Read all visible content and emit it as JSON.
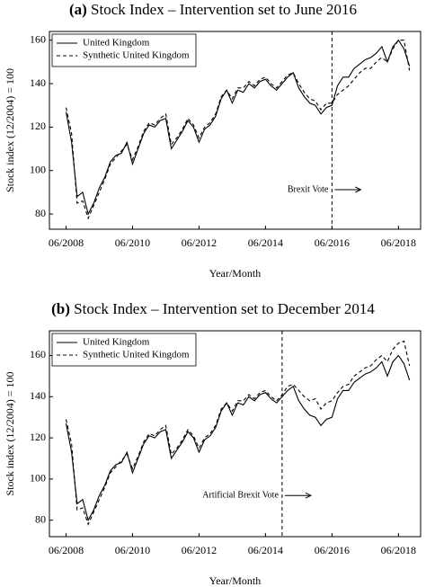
{
  "chart_data": [
    {
      "type": "line",
      "label": "(a)",
      "title": "Stock Index – Intervention set to June 2016",
      "xlabel": "Year/Month",
      "ylabel": "Stock index (12/2004) = 100",
      "annotation": "Brexit Vote",
      "intervention": "06/2016",
      "xlim": [
        "12/2007",
        "02/2019"
      ],
      "xticks": [
        "06/2008",
        "06/2010",
        "06/2012",
        "06/2014",
        "06/2016",
        "06/2018"
      ],
      "ylim": [
        73,
        164
      ],
      "yticks": [
        80,
        100,
        120,
        140,
        160
      ],
      "legend": "upper left",
      "x": [
        "06/2008",
        "08/2008",
        "10/2008",
        "12/2008",
        "02/2009",
        "04/2009",
        "06/2009",
        "08/2009",
        "10/2009",
        "12/2009",
        "02/2010",
        "04/2010",
        "06/2010",
        "08/2010",
        "10/2010",
        "12/2010",
        "02/2011",
        "04/2011",
        "06/2011",
        "08/2011",
        "10/2011",
        "12/2011",
        "02/2012",
        "04/2012",
        "06/2012",
        "08/2012",
        "10/2012",
        "12/2012",
        "02/2013",
        "04/2013",
        "06/2013",
        "08/2013",
        "10/2013",
        "12/2013",
        "02/2014",
        "04/2014",
        "06/2014",
        "08/2014",
        "10/2014",
        "12/2014",
        "02/2015",
        "04/2015",
        "06/2015",
        "08/2015",
        "10/2015",
        "12/2015",
        "02/2016",
        "04/2016",
        "06/2016",
        "08/2016",
        "10/2016",
        "12/2016",
        "02/2017",
        "04/2017",
        "06/2017",
        "08/2017",
        "10/2017",
        "12/2017",
        "02/2018",
        "04/2018",
        "06/2018",
        "08/2018",
        "10/2018"
      ],
      "series": [
        {
          "name": "United Kingdom",
          "color": "#000000",
          "linestyle": "solid",
          "values": [
            127,
            113,
            88,
            90,
            80,
            85,
            92,
            97,
            104,
            107,
            108,
            113,
            103,
            110,
            117,
            121,
            120,
            123,
            124,
            110,
            114,
            118,
            123,
            120,
            113,
            119,
            121,
            125,
            133,
            137,
            131,
            137,
            136,
            140,
            138,
            141,
            142,
            139,
            137,
            140,
            143,
            145,
            138,
            134,
            131,
            130,
            126,
            129,
            130,
            139,
            143,
            143,
            147,
            149,
            151,
            152,
            154,
            157,
            150,
            157,
            160,
            156,
            148
          ]
        },
        {
          "name": "Synthetic United Kingdom",
          "color": "#000000",
          "linestyle": "dashed",
          "values": [
            129,
            117,
            85,
            86,
            78,
            84,
            90,
            96,
            103,
            106,
            109,
            112,
            105,
            111,
            118,
            122,
            121,
            124,
            126,
            112,
            115,
            119,
            124,
            121,
            115,
            120,
            122,
            126,
            134,
            137,
            133,
            138,
            138,
            141,
            139,
            142,
            143,
            140,
            138,
            141,
            144,
            145,
            140,
            136,
            133,
            132,
            128,
            131,
            131,
            135,
            137,
            139,
            142,
            145,
            147,
            147,
            150,
            152,
            150,
            156,
            160,
            160,
            146
          ]
        }
      ]
    },
    {
      "type": "line",
      "label": "(b)",
      "title": "Stock Index – Intervention set to December 2014",
      "xlabel": "Year/Month",
      "ylabel": "Stock index (12/2004) = 100",
      "annotation": "Artificial Brexit Vote",
      "intervention": "12/2014",
      "xlim": [
        "12/2007",
        "02/2019"
      ],
      "xticks": [
        "06/2008",
        "06/2010",
        "06/2012",
        "06/2014",
        "06/2016",
        "06/2018"
      ],
      "ylim": [
        72,
        172
      ],
      "yticks": [
        80,
        100,
        120,
        140,
        160
      ],
      "legend": "upper left",
      "x": [
        "06/2008",
        "08/2008",
        "10/2008",
        "12/2008",
        "02/2009",
        "04/2009",
        "06/2009",
        "08/2009",
        "10/2009",
        "12/2009",
        "02/2010",
        "04/2010",
        "06/2010",
        "08/2010",
        "10/2010",
        "12/2010",
        "02/2011",
        "04/2011",
        "06/2011",
        "08/2011",
        "10/2011",
        "12/2011",
        "02/2012",
        "04/2012",
        "06/2012",
        "08/2012",
        "10/2012",
        "12/2012",
        "02/2013",
        "04/2013",
        "06/2013",
        "08/2013",
        "10/2013",
        "12/2013",
        "02/2014",
        "04/2014",
        "06/2014",
        "08/2014",
        "10/2014",
        "12/2014",
        "02/2015",
        "04/2015",
        "06/2015",
        "08/2015",
        "10/2015",
        "12/2015",
        "02/2016",
        "04/2016",
        "06/2016",
        "08/2016",
        "10/2016",
        "12/2016",
        "02/2017",
        "04/2017",
        "06/2017",
        "08/2017",
        "10/2017",
        "12/2017",
        "02/2018",
        "04/2018",
        "06/2018",
        "08/2018",
        "10/2018"
      ],
      "series": [
        {
          "name": "United Kingdom",
          "color": "#000000",
          "linestyle": "solid",
          "values": [
            127,
            113,
            88,
            90,
            80,
            85,
            92,
            97,
            104,
            107,
            108,
            113,
            103,
            110,
            117,
            121,
            120,
            123,
            124,
            110,
            114,
            118,
            123,
            120,
            113,
            119,
            121,
            125,
            133,
            137,
            131,
            137,
            136,
            140,
            138,
            141,
            142,
            139,
            137,
            140,
            143,
            145,
            138,
            134,
            131,
            130,
            126,
            129,
            130,
            139,
            143,
            143,
            147,
            149,
            151,
            152,
            154,
            157,
            150,
            157,
            160,
            156,
            148
          ]
        },
        {
          "name": "Synthetic United Kingdom",
          "color": "#000000",
          "linestyle": "dashed",
          "values": [
            129,
            117,
            85,
            86,
            78,
            84,
            90,
            96,
            103,
            106,
            109,
            112,
            105,
            111,
            118,
            122,
            121,
            124,
            126,
            112,
            115,
            119,
            124,
            121,
            115,
            120,
            122,
            126,
            134,
            137,
            133,
            138,
            138,
            141,
            139,
            142,
            143,
            140,
            138,
            141,
            145,
            146,
            143,
            140,
            138,
            139,
            134,
            137,
            138,
            142,
            145,
            146,
            150,
            152,
            154,
            155,
            158,
            160,
            157,
            163,
            166,
            167,
            155
          ]
        }
      ]
    }
  ]
}
